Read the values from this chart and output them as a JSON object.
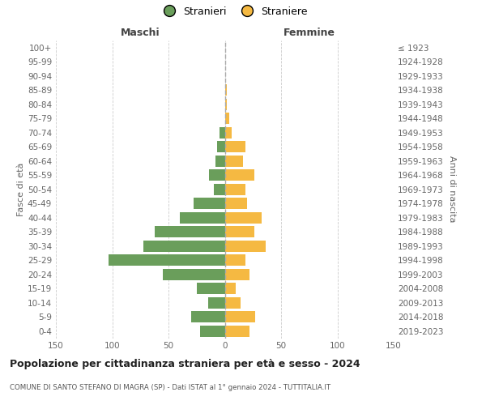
{
  "age_groups": [
    "100+",
    "95-99",
    "90-94",
    "85-89",
    "80-84",
    "75-79",
    "70-74",
    "65-69",
    "60-64",
    "55-59",
    "50-54",
    "45-49",
    "40-44",
    "35-39",
    "30-34",
    "25-29",
    "20-24",
    "15-19",
    "10-14",
    "5-9",
    "0-4"
  ],
  "birth_years": [
    "≤ 1923",
    "1924-1928",
    "1929-1933",
    "1934-1938",
    "1939-1943",
    "1944-1948",
    "1949-1953",
    "1954-1958",
    "1959-1963",
    "1964-1968",
    "1969-1973",
    "1974-1978",
    "1979-1983",
    "1984-1988",
    "1989-1993",
    "1994-1998",
    "1999-2003",
    "2004-2008",
    "2009-2013",
    "2014-2018",
    "2019-2023"
  ],
  "males": [
    0,
    0,
    0,
    0,
    0,
    0,
    5,
    7,
    8,
    14,
    10,
    28,
    40,
    62,
    72,
    103,
    55,
    25,
    15,
    30,
    22
  ],
  "females": [
    0,
    0,
    0,
    2,
    2,
    4,
    6,
    18,
    16,
    26,
    18,
    20,
    33,
    26,
    36,
    18,
    22,
    10,
    14,
    27,
    22
  ],
  "male_color": "#6a9e5b",
  "female_color": "#f5b942",
  "title": "Popolazione per cittadinanza straniera per età e sesso - 2024",
  "subtitle": "COMUNE DI SANTO STEFANO DI MAGRA (SP) - Dati ISTAT al 1° gennaio 2024 - TUTTITALIA.IT",
  "header_left": "Maschi",
  "header_right": "Femmine",
  "ylabel_left": "Fasce di età",
  "ylabel_right": "Anni di nascita",
  "legend_stranieri": "Stranieri",
  "legend_straniere": "Straniere",
  "xlim": 150,
  "background_color": "#ffffff",
  "grid_color": "#cccccc"
}
